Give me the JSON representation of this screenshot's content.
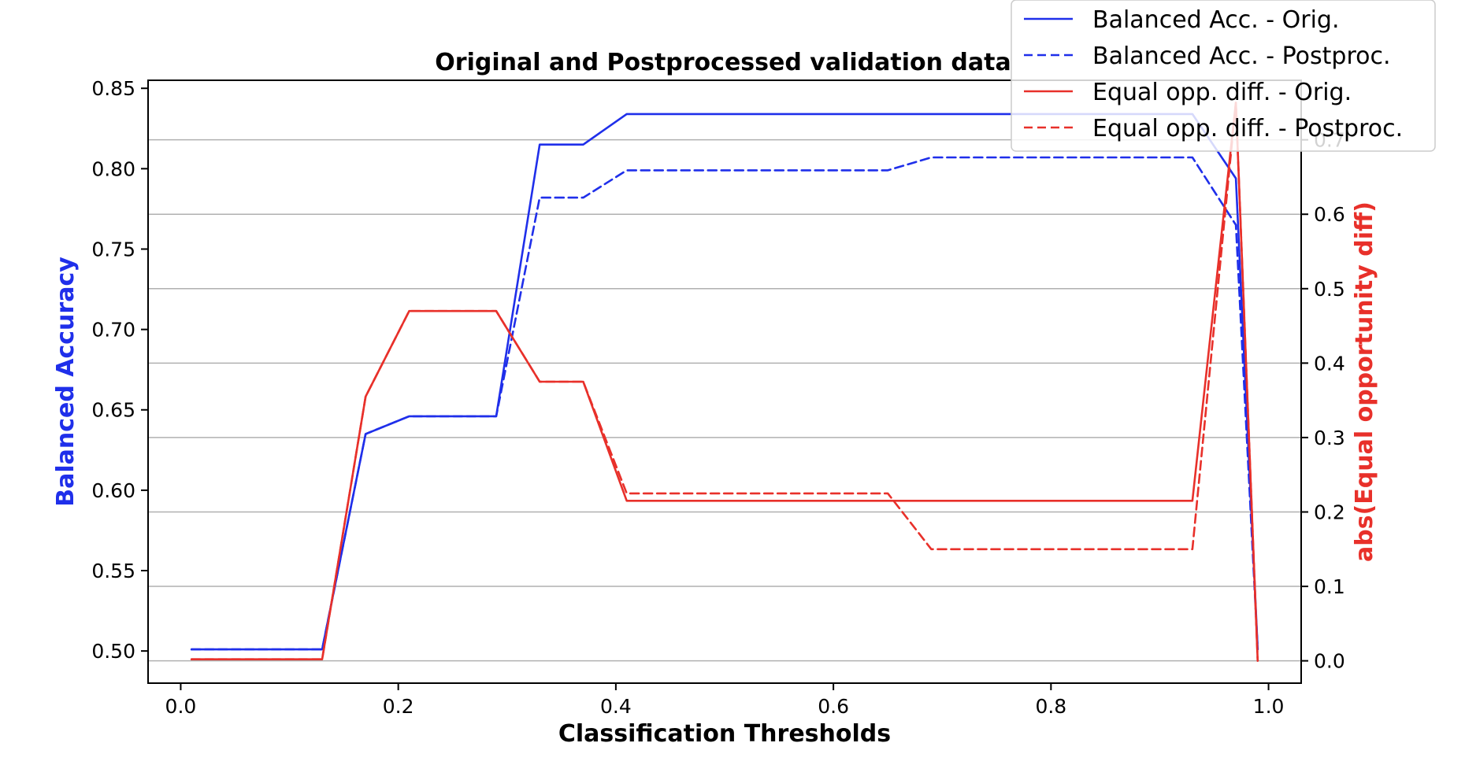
{
  "chart_data": {
    "type": "line",
    "title": "Original and Postprocessed validation data",
    "xlabel": "Classification Thresholds",
    "ylabel": "Balanced Accuracy",
    "y2label": "abs(Equal opportunity diff)",
    "xlim": [
      -0.03,
      1.03
    ],
    "ylim": [
      0.48,
      0.855
    ],
    "y2lim": [
      -0.03,
      0.78
    ],
    "xticks": [
      "0.0",
      "0.2",
      "0.4",
      "0.6",
      "0.8",
      "1.0"
    ],
    "yticks": [
      "0.50",
      "0.55",
      "0.60",
      "0.65",
      "0.70",
      "0.75",
      "0.80",
      "0.85"
    ],
    "y2ticks": [
      "0.0",
      "0.1",
      "0.2",
      "0.3",
      "0.4",
      "0.5",
      "0.6",
      "0.7"
    ],
    "grid": "horizontal (right axis)",
    "legend_position": "top-right",
    "x": [
      0.01,
      0.05,
      0.09,
      0.13,
      0.17,
      0.21,
      0.25,
      0.29,
      0.33,
      0.37,
      0.41,
      0.45,
      0.49,
      0.53,
      0.57,
      0.61,
      0.65,
      0.69,
      0.73,
      0.77,
      0.81,
      0.85,
      0.89,
      0.93,
      0.97,
      0.99
    ],
    "series": [
      {
        "name": "Balanced Acc. - Orig.",
        "axis": "left",
        "color": "#1f2fea",
        "dash": "solid",
        "values": [
          0.501,
          0.501,
          0.501,
          0.501,
          0.635,
          0.646,
          0.646,
          0.646,
          0.815,
          0.815,
          0.834,
          0.834,
          0.834,
          0.834,
          0.834,
          0.834,
          0.834,
          0.834,
          0.834,
          0.834,
          0.834,
          0.834,
          0.834,
          0.834,
          0.794,
          0.501
        ]
      },
      {
        "name": "Balanced Acc. - Postproc.",
        "axis": "left",
        "color": "#1f2fea",
        "dash": "dashed",
        "values": [
          0.501,
          0.501,
          0.501,
          0.501,
          0.635,
          0.646,
          0.646,
          0.646,
          0.782,
          0.782,
          0.799,
          0.799,
          0.799,
          0.799,
          0.799,
          0.799,
          0.799,
          0.807,
          0.807,
          0.807,
          0.807,
          0.807,
          0.807,
          0.807,
          0.765,
          0.501
        ]
      },
      {
        "name": "Equal opp. diff. - Orig.",
        "axis": "right",
        "color": "#e8302a",
        "dash": "solid",
        "values": [
          0.002,
          0.002,
          0.002,
          0.002,
          0.355,
          0.47,
          0.47,
          0.47,
          0.375,
          0.375,
          0.215,
          0.215,
          0.215,
          0.215,
          0.215,
          0.215,
          0.215,
          0.215,
          0.215,
          0.215,
          0.215,
          0.215,
          0.215,
          0.215,
          0.75,
          0.0
        ]
      },
      {
        "name": "Equal opp. diff. - Postproc.",
        "axis": "right",
        "color": "#e8302a",
        "dash": "dashed",
        "values": [
          0.002,
          0.002,
          0.002,
          0.002,
          0.355,
          0.47,
          0.47,
          0.47,
          0.375,
          0.375,
          0.225,
          0.225,
          0.225,
          0.225,
          0.225,
          0.225,
          0.225,
          0.15,
          0.15,
          0.15,
          0.15,
          0.15,
          0.15,
          0.15,
          0.75,
          0.0
        ]
      }
    ]
  },
  "colors": {
    "left_axis_label": "#1f2fea",
    "right_axis_label": "#e8302a",
    "grid": "#b0b0b0"
  }
}
